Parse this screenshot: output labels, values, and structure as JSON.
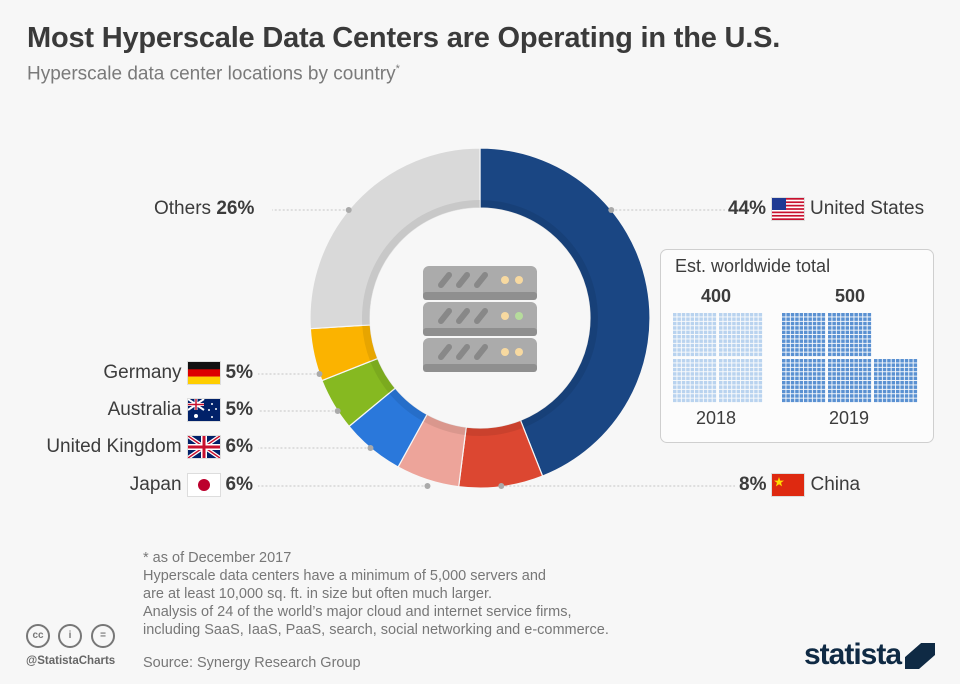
{
  "header": {
    "title": "Most Hyperscale Data Centers are Operating in the U.S.",
    "subtitle": "Hyperscale data center locations by country",
    "subtitle_mark": "*"
  },
  "chart_data": {
    "type": "pie",
    "donut": true,
    "slices": [
      {
        "label": "United States",
        "value": 44,
        "pct_label": "44%",
        "color": "#1a4683",
        "flag": "us-flag"
      },
      {
        "label": "China",
        "value": 8,
        "pct_label": "8%",
        "color": "#dc4731",
        "flag": "china-flag"
      },
      {
        "label": "Japan",
        "value": 6,
        "pct_label": "6%",
        "color": "#eda49a",
        "flag": "japan-flag"
      },
      {
        "label": "United Kingdom",
        "value": 6,
        "pct_label": "6%",
        "color": "#2a78db",
        "flag": "uk-flag"
      },
      {
        "label": "Australia",
        "value": 5,
        "pct_label": "5%",
        "color": "#86b921",
        "flag": "australia-flag"
      },
      {
        "label": "Germany",
        "value": 5,
        "pct_label": "5%",
        "color": "#fbb300",
        "flag": "germany-flag"
      },
      {
        "label": "Others",
        "value": 26,
        "pct_label": "26%",
        "color": "#d9d9d9"
      }
    ],
    "center_icon": "server-rack-icon"
  },
  "inset": {
    "title": "Est. worldwide total",
    "type": "waffle",
    "unit_per_cell": 1,
    "bars": [
      {
        "year": "2018",
        "value": 400,
        "value_label": "400",
        "color": "#b9d3ef"
      },
      {
        "year": "2019",
        "value": 500,
        "value_label": "500",
        "color": "#5a91d2"
      }
    ]
  },
  "footer": {
    "notes": [
      "* as of December 2017",
      "Hyperscale data centers have a minimum of 5,000 servers and",
      "are at least 10,000 sq. ft. in size but often much larger.",
      "Analysis of 24 of the world’s major cloud and internet service firms,",
      "including SaaS, IaaS, PaaS, search, social networking and e-commerce."
    ],
    "source": "Source: Synergy Research Group",
    "handle": "@StatistaCharts",
    "brand": "statista",
    "license_icons": [
      "cc-icon",
      "attribution-icon",
      "no-derivatives-icon"
    ],
    "license_text": [
      "cc",
      "i",
      "="
    ]
  }
}
